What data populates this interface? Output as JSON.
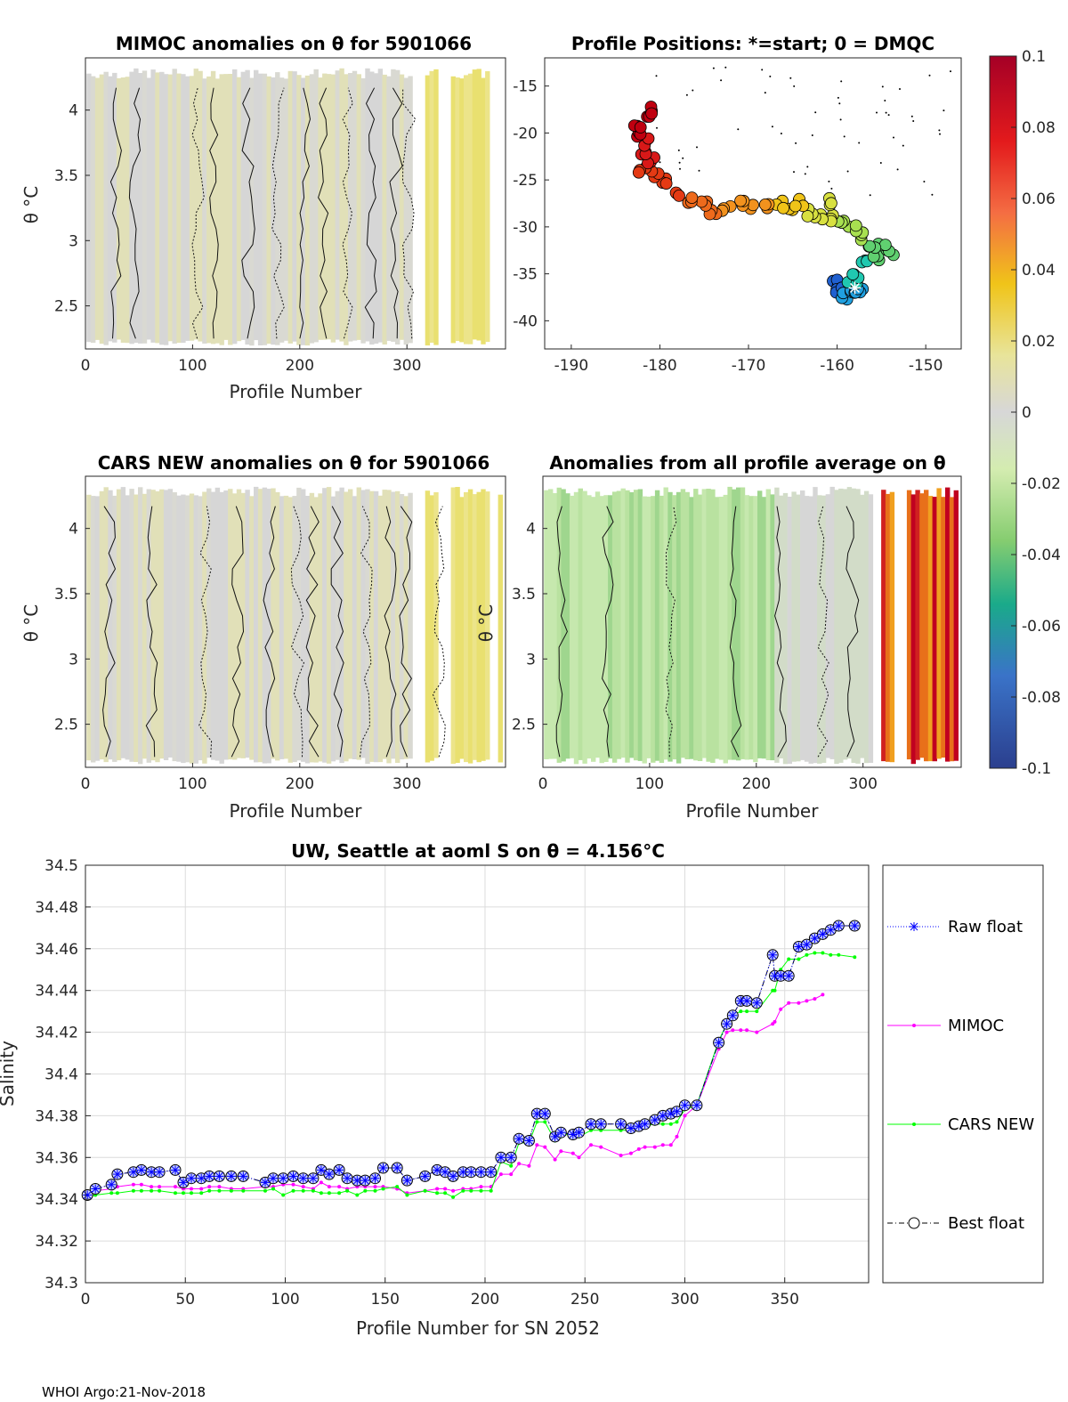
{
  "chart_data": [
    {
      "id": "mimoc",
      "type": "heatmap",
      "title": "MIMOC anomalies on θ  for 5901066",
      "xlabel": "Profile Number",
      "ylabel": "θ °C",
      "xlim": [
        0,
        392
      ],
      "ylim": [
        2.17,
        4.4
      ],
      "xticks": [
        0,
        100,
        200,
        300
      ],
      "yticks": [
        2.5,
        3,
        3.5,
        4
      ]
    },
    {
      "id": "positions",
      "type": "scatter",
      "title": "Profile Positions: *=start; 0 = DMQC",
      "xlim": [
        -193,
        -146
      ],
      "ylim": [
        -43,
        -12
      ],
      "xticks": [
        -190,
        -180,
        -170,
        -160,
        -150
      ],
      "yticks": [
        -15,
        -20,
        -25,
        -30,
        -35,
        -40
      ],
      "track": [
        [
          -181.2,
          -17.5
        ],
        [
          -181.5,
          -18.5
        ],
        [
          -182.5,
          -19.3
        ],
        [
          -182.2,
          -20.2
        ],
        [
          -181.3,
          -21.0
        ],
        [
          -181.6,
          -22.0
        ],
        [
          -181.0,
          -22.8
        ],
        [
          -182.0,
          -23.8
        ],
        [
          -180.5,
          -24.5
        ],
        [
          -179.5,
          -25.3
        ],
        [
          -178.0,
          -26.3
        ],
        [
          -176.5,
          -27.0
        ],
        [
          -175.0,
          -27.5
        ],
        [
          -174.0,
          -28.2
        ],
        [
          -172.5,
          -28.0
        ],
        [
          -171.0,
          -27.6
        ],
        [
          -169.5,
          -28.0
        ],
        [
          -168.0,
          -27.8
        ],
        [
          -166.5,
          -27.6
        ],
        [
          -165.0,
          -27.9
        ],
        [
          -164.0,
          -27.4
        ],
        [
          -163.0,
          -28.5
        ],
        [
          -162.0,
          -28.8
        ],
        [
          -161.0,
          -27.4
        ],
        [
          -160.5,
          -29.0
        ],
        [
          -159.5,
          -29.8
        ],
        [
          -158.3,
          -30.0
        ],
        [
          -157.0,
          -31.0
        ],
        [
          -156.0,
          -32.0
        ],
        [
          -155.0,
          -32.2
        ],
        [
          -154.0,
          -32.8
        ],
        [
          -155.5,
          -33.5
        ],
        [
          -157.0,
          -34.0
        ],
        [
          -158.0,
          -35.0
        ],
        [
          -158.3,
          -35.8
        ],
        [
          -158.0,
          -36.2
        ],
        [
          -157.5,
          -36.6
        ],
        [
          -158.3,
          -37.0
        ],
        [
          -159.3,
          -37.3
        ],
        [
          -159.8,
          -36.6
        ],
        [
          -160.0,
          -35.8
        ],
        [
          -159.0,
          -37.5
        ]
      ],
      "start": [
        -158.0,
        -36.5
      ]
    },
    {
      "id": "cars",
      "type": "heatmap",
      "title": "CARS NEW anomalies on θ for 5901066",
      "xlabel": "Profile Number",
      "ylabel": "θ °C",
      "xlim": [
        0,
        392
      ],
      "ylim": [
        2.17,
        4.4
      ],
      "xticks": [
        0,
        100,
        200,
        300
      ],
      "yticks": [
        2.5,
        3,
        3.5,
        4
      ]
    },
    {
      "id": "allprof",
      "type": "heatmap",
      "title": "Anomalies from all profile average on θ",
      "xlabel": "Profile Number",
      "ylabel": "θ °C",
      "xlim": [
        0,
        392
      ],
      "ylim": [
        2.17,
        4.4
      ],
      "xticks": [
        0,
        100,
        200,
        300
      ],
      "yticks": [
        2.5,
        3,
        3.5,
        4
      ]
    },
    {
      "id": "colorbar",
      "type": "heatmap",
      "clim": [
        -0.1,
        0.1
      ],
      "ticks": [
        "0.1",
        "0.08",
        "0.06",
        "0.04",
        "0.02",
        "0",
        "-0.02",
        "-0.04",
        "-0.06",
        "-0.08",
        "-0.1"
      ]
    },
    {
      "id": "salinity",
      "type": "line",
      "title": "UW, Seattle at aoml S on θ = 4.156°C",
      "xlabel": "Profile Number for SN 2052",
      "ylabel": "Salinity",
      "xlim": [
        0,
        392
      ],
      "ylim": [
        34.3,
        34.5
      ],
      "xticks": [
        0,
        50,
        100,
        150,
        200,
        250,
        300,
        350
      ],
      "yticks": [
        "34.3",
        "34.32",
        "34.34",
        "34.36",
        "34.38",
        "34.4",
        "34.42",
        "34.44",
        "34.46",
        "34.48",
        "34.5"
      ],
      "grid": true,
      "legend_position": "outside-right",
      "series": [
        {
          "name": "Raw float",
          "color": "#0000ff",
          "x": [
            1,
            5,
            13,
            16,
            24,
            28,
            33,
            37,
            45,
            49,
            53,
            58,
            62,
            67,
            73,
            79,
            90,
            94,
            99,
            104,
            109,
            114,
            118,
            122,
            127,
            131,
            136,
            140,
            145,
            149,
            156,
            161,
            170,
            176,
            180,
            184,
            189,
            193,
            198,
            203,
            208,
            213,
            217,
            222,
            226,
            230,
            235,
            238,
            244,
            247,
            253,
            258,
            268,
            273,
            277,
            280,
            285,
            289,
            293,
            296,
            300,
            306,
            317,
            321,
            324,
            328,
            331,
            336,
            344,
            345,
            348,
            352,
            357,
            361,
            365,
            369,
            373,
            377,
            385
          ],
          "y": [
            34.342,
            34.345,
            34.347,
            34.352,
            34.353,
            34.354,
            34.353,
            34.353,
            34.354,
            34.348,
            34.35,
            34.35,
            34.351,
            34.351,
            34.351,
            34.351,
            34.348,
            34.35,
            34.35,
            34.351,
            34.35,
            34.35,
            34.354,
            34.352,
            34.354,
            34.35,
            34.349,
            34.349,
            34.35,
            34.355,
            34.355,
            34.349,
            34.351,
            34.354,
            34.353,
            34.351,
            34.353,
            34.353,
            34.353,
            34.353,
            34.36,
            34.36,
            34.369,
            34.368,
            34.381,
            34.381,
            34.37,
            34.372,
            34.371,
            34.372,
            34.376,
            34.376,
            34.376,
            34.374,
            34.375,
            34.376,
            34.378,
            34.38,
            34.381,
            34.382,
            34.385,
            34.385,
            34.415,
            34.424,
            34.428,
            34.435,
            34.435,
            34.434,
            34.457,
            34.447,
            34.447,
            34.447,
            34.461,
            34.462,
            34.465,
            34.467,
            34.469,
            34.471,
            34.471
          ]
        },
        {
          "name": "MIMOC",
          "color": "#ff00ff",
          "x": [
            1,
            5,
            13,
            16,
            24,
            28,
            33,
            37,
            45,
            49,
            53,
            58,
            62,
            67,
            73,
            79,
            90,
            94,
            99,
            104,
            109,
            114,
            118,
            122,
            127,
            131,
            136,
            140,
            145,
            149,
            156,
            161,
            170,
            176,
            180,
            184,
            189,
            193,
            198,
            203,
            208,
            213,
            217,
            222,
            226,
            230,
            235,
            238,
            244,
            247,
            253,
            258,
            268,
            273,
            277,
            280,
            285,
            289,
            293,
            296,
            300,
            306,
            317,
            321,
            324,
            328,
            331,
            336,
            344,
            345,
            348,
            352,
            357,
            361,
            365,
            369
          ],
          "y": [
            34.342,
            34.344,
            34.345,
            34.346,
            34.347,
            34.347,
            34.346,
            34.346,
            34.346,
            34.345,
            34.345,
            34.345,
            34.346,
            34.346,
            34.345,
            34.345,
            34.346,
            34.346,
            34.347,
            34.347,
            34.346,
            34.345,
            34.348,
            34.346,
            34.346,
            34.345,
            34.346,
            34.346,
            34.346,
            34.346,
            34.345,
            34.343,
            34.344,
            34.345,
            34.345,
            34.344,
            34.345,
            34.345,
            34.346,
            34.346,
            34.352,
            34.352,
            34.357,
            34.356,
            34.366,
            34.365,
            34.359,
            34.363,
            34.362,
            34.36,
            34.366,
            34.365,
            34.361,
            34.362,
            34.364,
            34.365,
            34.365,
            34.366,
            34.366,
            34.37,
            34.38,
            34.385,
            34.412,
            34.42,
            34.421,
            34.421,
            34.421,
            34.42,
            34.424,
            34.425,
            34.431,
            34.434,
            34.434,
            34.435,
            34.436,
            34.438
          ]
        },
        {
          "name": "CARS NEW",
          "color": "#00ff00",
          "x": [
            1,
            5,
            13,
            16,
            24,
            28,
            33,
            37,
            45,
            49,
            53,
            58,
            62,
            67,
            73,
            79,
            90,
            94,
            99,
            104,
            109,
            114,
            118,
            122,
            127,
            131,
            136,
            140,
            145,
            149,
            156,
            161,
            170,
            176,
            180,
            184,
            189,
            193,
            198,
            203,
            208,
            213,
            217,
            222,
            226,
            230,
            235,
            238,
            244,
            247,
            253,
            258,
            268,
            273,
            277,
            280,
            285,
            289,
            293,
            296,
            300,
            306,
            317,
            321,
            324,
            328,
            331,
            336,
            344,
            345,
            348,
            352,
            357,
            361,
            365,
            369,
            373,
            377,
            385
          ],
          "y": [
            34.341,
            34.342,
            34.343,
            34.343,
            34.344,
            34.344,
            34.344,
            34.344,
            34.343,
            34.343,
            34.343,
            34.343,
            34.344,
            34.344,
            34.344,
            34.344,
            34.344,
            34.345,
            34.342,
            34.344,
            34.344,
            34.344,
            34.343,
            34.343,
            34.343,
            34.344,
            34.342,
            34.344,
            34.344,
            34.345,
            34.346,
            34.342,
            34.344,
            34.343,
            34.343,
            34.341,
            34.344,
            34.344,
            34.344,
            34.344,
            34.358,
            34.356,
            34.367,
            34.367,
            34.377,
            34.377,
            34.368,
            34.37,
            34.372,
            34.37,
            34.373,
            34.373,
            34.373,
            34.373,
            34.374,
            34.375,
            34.376,
            34.376,
            34.376,
            34.377,
            34.383,
            34.385,
            34.416,
            34.424,
            34.428,
            34.43,
            34.43,
            34.43,
            34.44,
            34.44,
            34.45,
            34.455,
            34.455,
            34.457,
            34.458,
            34.458,
            34.457,
            34.457,
            34.456
          ]
        },
        {
          "name": "Best float",
          "color": "#000000",
          "x": [
            1,
            5,
            13,
            16,
            24,
            28,
            33,
            37,
            45,
            49,
            53,
            58,
            62,
            67,
            73,
            79,
            90,
            94,
            99,
            104,
            109,
            114,
            118,
            122,
            127,
            131,
            136,
            140,
            145,
            149,
            156,
            161,
            170,
            176,
            180,
            184,
            189,
            193,
            198,
            203,
            208,
            213,
            217,
            222,
            226,
            230,
            235,
            238,
            244,
            247,
            253,
            258,
            268,
            273,
            277,
            280,
            285,
            289,
            293,
            296,
            300,
            306,
            317,
            321,
            324,
            328,
            331,
            336,
            344,
            345,
            348,
            352,
            357,
            361,
            365,
            369,
            373,
            377,
            385
          ],
          "y": [
            34.342,
            34.345,
            34.347,
            34.352,
            34.353,
            34.354,
            34.353,
            34.353,
            34.354,
            34.348,
            34.35,
            34.35,
            34.351,
            34.351,
            34.351,
            34.351,
            34.348,
            34.35,
            34.35,
            34.351,
            34.35,
            34.35,
            34.354,
            34.352,
            34.354,
            34.35,
            34.349,
            34.349,
            34.35,
            34.355,
            34.355,
            34.349,
            34.351,
            34.354,
            34.353,
            34.351,
            34.353,
            34.353,
            34.353,
            34.353,
            34.36,
            34.36,
            34.369,
            34.368,
            34.381,
            34.381,
            34.37,
            34.372,
            34.371,
            34.372,
            34.376,
            34.376,
            34.376,
            34.374,
            34.375,
            34.376,
            34.378,
            34.38,
            34.381,
            34.382,
            34.385,
            34.385,
            34.415,
            34.424,
            34.428,
            34.435,
            34.435,
            34.434,
            34.457,
            34.447,
            34.447,
            34.447,
            34.461,
            34.462,
            34.465,
            34.467,
            34.469,
            34.471,
            34.471
          ]
        }
      ]
    }
  ],
  "footer": "WHOI Argo:21-Nov-2018"
}
